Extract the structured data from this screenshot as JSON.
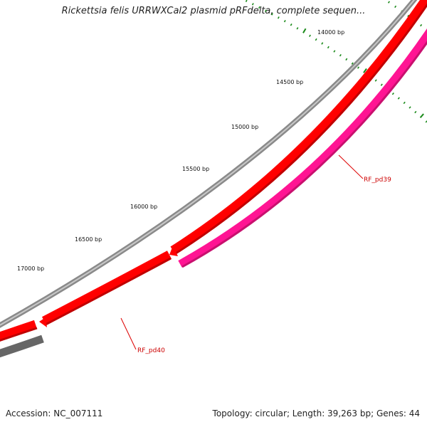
{
  "title": "Rickettsia felis URRWXCal2 plasmid pRFdelta, complete sequen...",
  "footer": {
    "accession": "Accession: NC_007111",
    "summary": "Topology: circular; Length: 39,263 bp; Genes: 44"
  },
  "colors": {
    "backbone": "#808080",
    "forward_gene": "#ff0000",
    "reverse_gene": "#ff1493",
    "other_feature": "#666666",
    "ticks": "#1a8a1a",
    "gene_label": "#cc0000"
  },
  "ticks": {
    "labels": [
      "14000 bp",
      "14500 bp",
      "15000 bp",
      "15500 bp",
      "16000 bp",
      "16500 bp",
      "17000 bp"
    ]
  },
  "genes": [
    {
      "name": "RF_pd39",
      "strand": "reverse"
    },
    {
      "name": "RF_pd40",
      "strand": "forward"
    }
  ]
}
